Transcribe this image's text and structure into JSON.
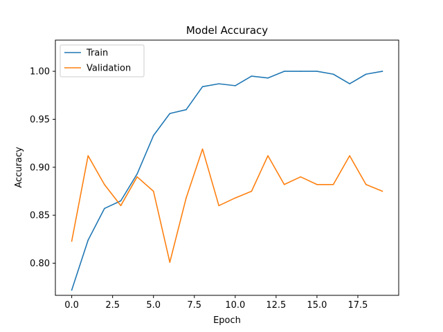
{
  "chart_data": {
    "type": "line",
    "title": "Model Accuracy",
    "xlabel": "Epoch",
    "ylabel": "Accuracy",
    "xlim": [
      -1.0,
      20.0
    ],
    "ylim": [
      0.7665,
      1.0325
    ],
    "x_ticks": [
      0.0,
      2.5,
      5.0,
      7.5,
      10.0,
      12.5,
      15.0,
      17.5
    ],
    "x_tick_labels": [
      "0.0",
      "2.5",
      "5.0",
      "7.5",
      "10.0",
      "12.5",
      "15.0",
      "17.5"
    ],
    "y_ticks": [
      0.8,
      0.85,
      0.9,
      0.95,
      1.0
    ],
    "y_tick_labels": [
      "0.80",
      "0.85",
      "0.90",
      "0.95",
      "1.00"
    ],
    "grid": false,
    "legend_position": "upper-left",
    "x": [
      0,
      1,
      2,
      3,
      4,
      5,
      6,
      7,
      8,
      9,
      10,
      11,
      12,
      13,
      14,
      15,
      16,
      17,
      18,
      19
    ],
    "series": [
      {
        "name": "Train",
        "color": "#1f77b4",
        "values": [
          0.772,
          0.824,
          0.857,
          0.865,
          0.893,
          0.933,
          0.956,
          0.96,
          0.984,
          0.987,
          0.985,
          0.995,
          0.993,
          1.0,
          1.0,
          1.0,
          0.997,
          0.987,
          0.997,
          1.0
        ]
      },
      {
        "name": "Validation",
        "color": "#ff7f0e",
        "values": [
          0.823,
          0.912,
          0.882,
          0.86,
          0.89,
          0.875,
          0.801,
          0.868,
          0.919,
          0.86,
          0.868,
          0.875,
          0.912,
          0.882,
          0.89,
          0.882,
          0.882,
          0.912,
          0.882,
          0.875
        ]
      }
    ]
  }
}
